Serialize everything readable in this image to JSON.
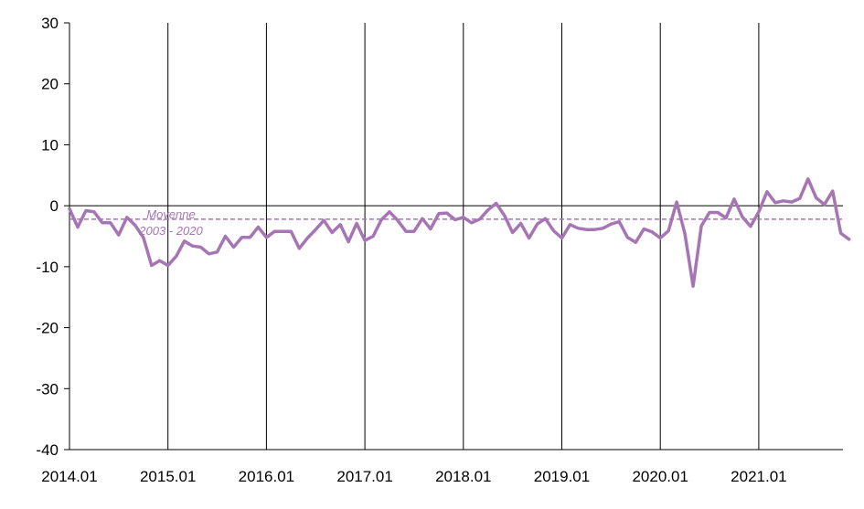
{
  "chart_data": {
    "type": "line",
    "title": "",
    "xlabel": "",
    "ylabel": "",
    "ylim": [
      -40,
      30
    ],
    "yticks": [
      30,
      20,
      10,
      0,
      -10,
      -20,
      -30,
      -40
    ],
    "x_tick_labels": [
      "2014.01",
      "2015.01",
      "2016.01",
      "2017.01",
      "2018.01",
      "2019.01",
      "2020.01",
      "2021.01"
    ],
    "grid": "vertical lines at each January",
    "legend": "none",
    "series_color": "#a675b4",
    "reference_line": {
      "value": -2.2,
      "label_line1": "Moyenne",
      "label_line2": "2003 - 2020",
      "color": "#a675b4",
      "style": "dashed"
    },
    "series": [
      {
        "x_start": "2014-01",
        "frequency": "monthly",
        "values": [
          -0.5,
          -3.5,
          -0.8,
          -1.0,
          -2.8,
          -2.8,
          -4.8,
          -1.9,
          -3.2,
          -5.2,
          -9.8,
          -9.0,
          -9.8,
          -8.3,
          -5.8,
          -6.6,
          -6.8,
          -7.9,
          -7.6,
          -5.0,
          -6.8,
          -5.2,
          -5.2,
          -3.5,
          -5.2,
          -4.2,
          -4.2,
          -4.2,
          -7.0,
          -5.3,
          -3.9,
          -2.4,
          -4.4,
          -3.1,
          -5.9,
          -2.9,
          -5.7,
          -5.0,
          -2.3,
          -1.0,
          -2.4,
          -4.2,
          -4.2,
          -2.1,
          -3.8,
          -1.3,
          -1.2,
          -2.3,
          -1.9,
          -2.8,
          -2.2,
          -0.7,
          0.4,
          -1.6,
          -4.4,
          -2.9,
          -5.3,
          -3.0,
          -2.1,
          -4.1,
          -5.3,
          -3.1,
          -3.7,
          -3.9,
          -3.9,
          -3.7,
          -3.0,
          -2.6,
          -5.2,
          -6.0,
          -3.8,
          -4.3,
          -5.3,
          -4.1,
          0.6,
          -4.6,
          -13.2,
          -3.3,
          -1.1,
          -1.1,
          -2.0,
          1.1,
          -1.8,
          -3.4,
          -1.0,
          2.3,
          0.5,
          0.8,
          0.6,
          1.2,
          4.4,
          1.3,
          0.2,
          2.4,
          -4.5,
          -5.5
        ]
      }
    ]
  }
}
